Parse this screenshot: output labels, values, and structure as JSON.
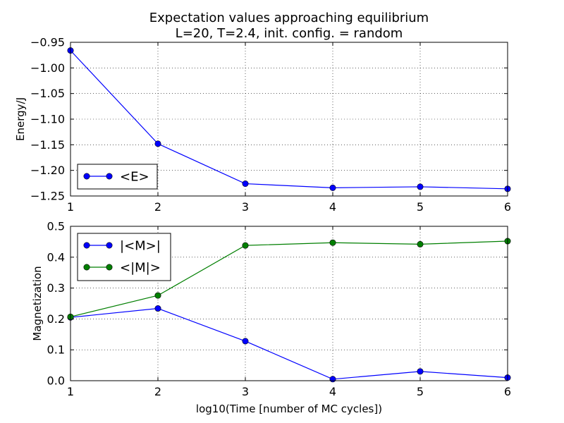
{
  "figure": {
    "title_line1": "Expectation values approaching equilibrium",
    "title_line2": "L=20, T=2.4, init. config. = random",
    "xlabel": "log10(Time [number of MC cycles])"
  },
  "colors": {
    "blue": "#0000ff",
    "green": "#007f00",
    "grid": "#000000"
  },
  "chart_data": [
    {
      "type": "line",
      "title": "Expectation values approaching equilibrium\nL=20, T=2.4, init. config. = random",
      "xlabel": "",
      "ylabel": "Energy/J",
      "xlim": [
        1,
        6
      ],
      "ylim": [
        -1.25,
        -0.95
      ],
      "grid": true,
      "legend_position": "lower-left",
      "x_ticks": [
        1,
        2,
        3,
        4,
        5,
        6
      ],
      "x_tick_labels": [
        "1",
        "2",
        "3",
        "4",
        "5",
        "6"
      ],
      "y_ticks": [
        -1.25,
        -1.2,
        -1.15,
        -1.1,
        -1.05,
        -1.0,
        -0.95
      ],
      "y_tick_labels": [
        "−1.25",
        "−1.20",
        "−1.15",
        "−1.10",
        "−1.05",
        "−1.00",
        "−0.95"
      ],
      "series": [
        {
          "name": "<E>",
          "color": "#0000ff",
          "x": [
            1,
            2,
            3,
            4,
            5,
            6
          ],
          "y": [
            -0.966,
            -1.148,
            -1.226,
            -1.234,
            -1.232,
            -1.236
          ]
        }
      ]
    },
    {
      "type": "line",
      "xlabel": "log10(Time [number of MC cycles])",
      "ylabel": "Magnetization",
      "xlim": [
        1,
        6
      ],
      "ylim": [
        0.0,
        0.5
      ],
      "grid": true,
      "legend_position": "upper-left",
      "x_ticks": [
        1,
        2,
        3,
        4,
        5,
        6
      ],
      "x_tick_labels": [
        "1",
        "2",
        "3",
        "4",
        "5",
        "6"
      ],
      "y_ticks": [
        0.0,
        0.1,
        0.2,
        0.3,
        0.4,
        0.5
      ],
      "y_tick_labels": [
        "0.0",
        "0.1",
        "0.2",
        "0.3",
        "0.4",
        "0.5"
      ],
      "series": [
        {
          "name": "|<M>|",
          "color": "#0000ff",
          "x": [
            1,
            2,
            3,
            4,
            5,
            6
          ],
          "y": [
            0.205,
            0.234,
            0.128,
            0.005,
            0.03,
            0.01
          ]
        },
        {
          "name": "<|M|>",
          "color": "#007f00",
          "x": [
            1,
            2,
            3,
            4,
            5,
            6
          ],
          "y": [
            0.207,
            0.276,
            0.438,
            0.447,
            0.442,
            0.452
          ]
        }
      ]
    }
  ]
}
